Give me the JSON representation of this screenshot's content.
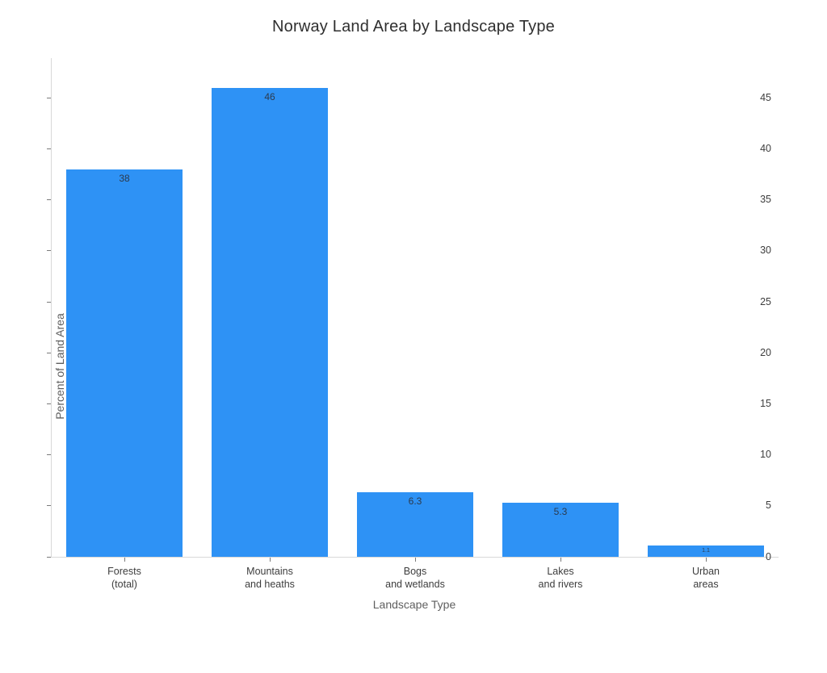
{
  "title": "Norway Land Area by Landscape Type",
  "chart_data": {
    "type": "bar",
    "title": "Norway Land Area by Landscape Type",
    "xlabel": "Landscape Type",
    "ylabel": "Percent of Land Area",
    "categories": [
      [
        "Forests",
        "(total)"
      ],
      [
        "Mountains",
        "and heaths"
      ],
      [
        "Bogs",
        "and wetlands"
      ],
      [
        "Lakes",
        "and rivers"
      ],
      [
        "Urban",
        "areas"
      ]
    ],
    "values": [
      38,
      46,
      6.3,
      5.3,
      1.1
    ],
    "value_labels": [
      "38",
      "46",
      "6.3",
      "5.3",
      "1.1"
    ],
    "yticks": [
      0,
      5,
      10,
      15,
      20,
      25,
      30,
      35,
      40,
      45
    ],
    "ylim": [
      0,
      48.9
    ],
    "grid": false,
    "legend": null,
    "bar_color": "#2e92f5",
    "bar_label_color": "#2c3a4d",
    "axis_line_color": "#d9d9d9",
    "tick_text_color": "#3d3d3d",
    "axis_title_color": "#5f5f5f",
    "title_color": "#2f2f2f",
    "background_color": "#ffffff"
  }
}
